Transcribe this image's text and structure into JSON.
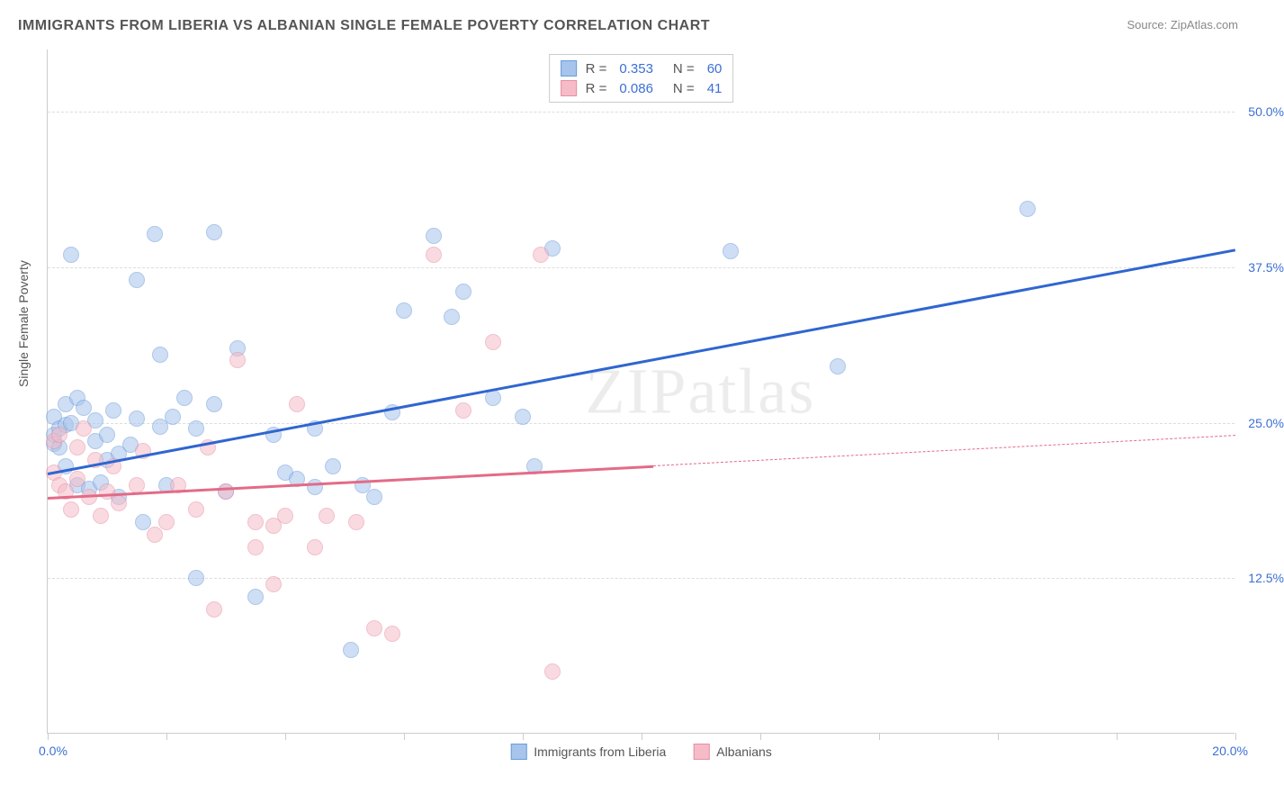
{
  "chart": {
    "type": "scatter",
    "title": "IMMIGRANTS FROM LIBERIA VS ALBANIAN SINGLE FEMALE POVERTY CORRELATION CHART",
    "source": "Source: ZipAtlas.com",
    "watermark": "ZIPatlas",
    "y_axis_title": "Single Female Poverty",
    "xlim": [
      0,
      20
    ],
    "ylim": [
      0,
      55
    ],
    "x_tick_positions": [
      0,
      2,
      4,
      6,
      8,
      10,
      12,
      14,
      16,
      18,
      20
    ],
    "y_gridlines": [
      12.5,
      25.0,
      37.5,
      50.0
    ],
    "y_tick_labels": [
      "12.5%",
      "25.0%",
      "37.5%",
      "50.0%"
    ],
    "x_start_label": "0.0%",
    "x_end_label": "20.0%",
    "background_color": "#ffffff",
    "grid_color": "#dddddd",
    "axis_color": "#cccccc",
    "label_color": "#3b6fd6",
    "title_color": "#555555",
    "title_fontsize": 16,
    "label_fontsize": 14,
    "marker_radius": 9,
    "marker_opacity": 0.55,
    "series": [
      {
        "name": "Immigrants from Liberia",
        "fill_color": "#a7c4ec",
        "stroke_color": "#6c9bd9",
        "trend_color": "#2f66d0",
        "r": 0.353,
        "n": 60,
        "trend": {
          "x1": 0,
          "y1": 21.0,
          "x2": 20,
          "y2": 39.0,
          "dashed_from": null
        },
        "points": [
          [
            0.1,
            25.5
          ],
          [
            0.1,
            24.0
          ],
          [
            0.1,
            23.3
          ],
          [
            0.2,
            24.5
          ],
          [
            0.2,
            23.0
          ],
          [
            0.3,
            26.5
          ],
          [
            0.3,
            21.5
          ],
          [
            0.3,
            24.8
          ],
          [
            0.4,
            38.5
          ],
          [
            0.4,
            25.0
          ],
          [
            0.5,
            27.0
          ],
          [
            0.5,
            20.0
          ],
          [
            0.7,
            19.7
          ],
          [
            0.8,
            25.2
          ],
          [
            0.8,
            23.5
          ],
          [
            0.9,
            20.2
          ],
          [
            1.0,
            24.0
          ],
          [
            1.0,
            22.0
          ],
          [
            1.1,
            26.0
          ],
          [
            1.2,
            19.0
          ],
          [
            1.2,
            22.5
          ],
          [
            1.5,
            36.5
          ],
          [
            1.5,
            25.3
          ],
          [
            1.6,
            17.0
          ],
          [
            1.8,
            40.2
          ],
          [
            1.9,
            30.5
          ],
          [
            1.9,
            24.7
          ],
          [
            2.0,
            20.0
          ],
          [
            2.1,
            25.5
          ],
          [
            2.3,
            27.0
          ],
          [
            2.5,
            12.5
          ],
          [
            2.5,
            24.5
          ],
          [
            2.8,
            40.3
          ],
          [
            2.8,
            26.5
          ],
          [
            3.0,
            19.5
          ],
          [
            3.2,
            31.0
          ],
          [
            3.5,
            11.0
          ],
          [
            3.8,
            24.0
          ],
          [
            4.0,
            21.0
          ],
          [
            4.2,
            20.5
          ],
          [
            4.5,
            24.5
          ],
          [
            4.5,
            19.8
          ],
          [
            4.8,
            21.5
          ],
          [
            5.1,
            6.7
          ],
          [
            5.3,
            20.0
          ],
          [
            5.5,
            19.0
          ],
          [
            5.8,
            25.8
          ],
          [
            6.0,
            34.0
          ],
          [
            6.5,
            40.0
          ],
          [
            6.8,
            33.5
          ],
          [
            7.0,
            35.5
          ],
          [
            7.5,
            27.0
          ],
          [
            8.0,
            25.5
          ],
          [
            8.2,
            21.5
          ],
          [
            8.5,
            39.0
          ],
          [
            11.5,
            38.8
          ],
          [
            13.3,
            29.5
          ],
          [
            16.5,
            42.2
          ],
          [
            0.6,
            26.2
          ],
          [
            1.4,
            23.2
          ]
        ]
      },
      {
        "name": "Albanians",
        "fill_color": "#f5bcc8",
        "stroke_color": "#e78fa3",
        "trend_color": "#e36b87",
        "r": 0.086,
        "n": 41,
        "trend": {
          "x1": 0,
          "y1": 19.0,
          "x2": 20,
          "y2": 24.0,
          "dashed_from": 10.2
        },
        "points": [
          [
            0.1,
            23.5
          ],
          [
            0.1,
            21.0
          ],
          [
            0.2,
            24.0
          ],
          [
            0.2,
            20.0
          ],
          [
            0.3,
            19.5
          ],
          [
            0.4,
            18.0
          ],
          [
            0.5,
            20.5
          ],
          [
            0.5,
            23.0
          ],
          [
            0.6,
            24.5
          ],
          [
            0.7,
            19.0
          ],
          [
            0.8,
            22.0
          ],
          [
            0.9,
            17.5
          ],
          [
            1.0,
            19.5
          ],
          [
            1.1,
            21.5
          ],
          [
            1.2,
            18.5
          ],
          [
            1.5,
            20.0
          ],
          [
            1.6,
            22.7
          ],
          [
            2.0,
            17.0
          ],
          [
            2.2,
            20.0
          ],
          [
            2.5,
            18.0
          ],
          [
            2.7,
            23.0
          ],
          [
            2.8,
            10.0
          ],
          [
            3.0,
            19.5
          ],
          [
            3.2,
            30.0
          ],
          [
            3.5,
            17.0
          ],
          [
            3.5,
            15.0
          ],
          [
            3.8,
            16.7
          ],
          [
            3.8,
            12.0
          ],
          [
            4.0,
            17.5
          ],
          [
            4.2,
            26.5
          ],
          [
            4.5,
            15.0
          ],
          [
            4.7,
            17.5
          ],
          [
            5.2,
            17.0
          ],
          [
            5.5,
            8.5
          ],
          [
            5.8,
            8.0
          ],
          [
            6.5,
            38.5
          ],
          [
            7.0,
            26.0
          ],
          [
            7.5,
            31.5
          ],
          [
            8.3,
            38.5
          ],
          [
            8.5,
            5.0
          ],
          [
            1.8,
            16.0
          ]
        ]
      }
    ],
    "legend_bottom": [
      {
        "label": "Immigrants from Liberia",
        "fill": "#a7c4ec",
        "stroke": "#6c9bd9"
      },
      {
        "label": "Albanians",
        "fill": "#f5bcc8",
        "stroke": "#e78fa3"
      }
    ]
  }
}
